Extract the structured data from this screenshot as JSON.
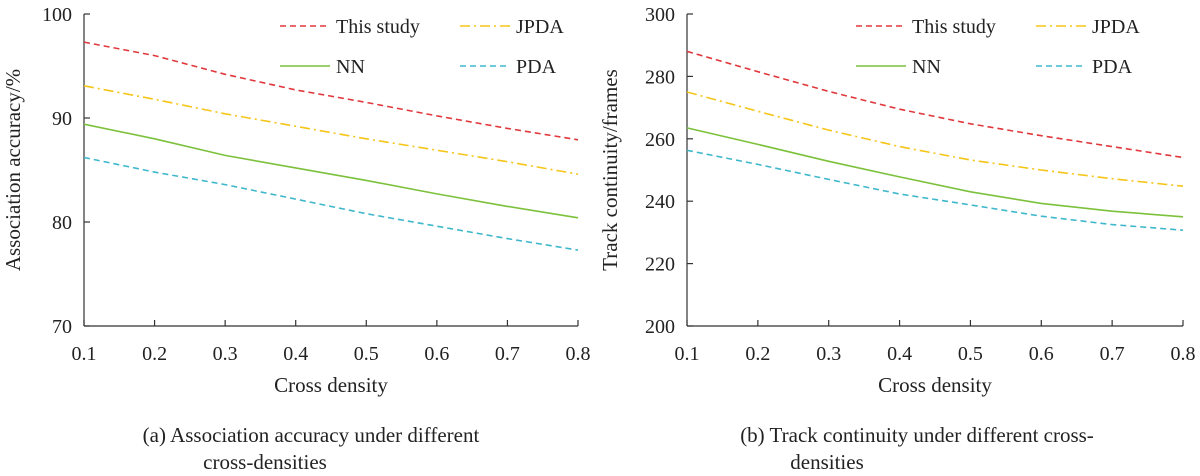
{
  "chart_data": [
    {
      "type": "line",
      "title": "",
      "xlabel": "Cross density",
      "ylabel": "Association accuracy/%",
      "caption_line1": "(a) Association accuracy under different",
      "caption_line2": "cross-densities",
      "x": [
        0.1,
        0.2,
        0.3,
        0.4,
        0.5,
        0.6,
        0.7,
        0.8
      ],
      "xticks": [
        "0.1",
        "0.2",
        "0.3",
        "0.4",
        "0.5",
        "0.6",
        "0.7",
        "0.8"
      ],
      "yticks": [
        "70",
        "80",
        "90",
        "100"
      ],
      "xlim": [
        0.1,
        0.8
      ],
      "ylim": [
        70,
        100
      ],
      "legend_position": "top-right",
      "series": [
        {
          "name": "This study",
          "color": "#e0383c",
          "dash": "dashed",
          "values": [
            97.3,
            96.0,
            94.2,
            92.7,
            91.5,
            90.2,
            89.0,
            87.9
          ]
        },
        {
          "name": "JPDA",
          "color": "#f5c518",
          "dash": "dashdot",
          "values": [
            93.1,
            91.8,
            90.4,
            89.2,
            88.0,
            86.9,
            85.8,
            84.6
          ]
        },
        {
          "name": "NN",
          "color": "#7cc13b",
          "dash": "solid",
          "values": [
            89.4,
            88.0,
            86.4,
            85.2,
            84.0,
            82.7,
            81.5,
            80.4
          ]
        },
        {
          "name": "PDA",
          "color": "#3fb8cc",
          "dash": "dashed",
          "values": [
            86.2,
            84.8,
            83.6,
            82.2,
            80.8,
            79.6,
            78.4,
            77.3
          ]
        }
      ]
    },
    {
      "type": "line",
      "title": "",
      "xlabel": "Cross density",
      "ylabel": "Track continuity/frames",
      "caption_line1": "(b) Track continuity under different cross-",
      "caption_line2": "densities",
      "x": [
        0.1,
        0.2,
        0.3,
        0.4,
        0.5,
        0.6,
        0.7,
        0.8
      ],
      "xticks": [
        "0.1",
        "0.2",
        "0.3",
        "0.4",
        "0.5",
        "0.6",
        "0.7",
        "0.8"
      ],
      "yticks": [
        "200",
        "220",
        "240",
        "260",
        "280",
        "300"
      ],
      "xlim": [
        0.1,
        0.8
      ],
      "ylim": [
        200,
        300
      ],
      "legend_position": "top-right",
      "series": [
        {
          "name": "This study",
          "color": "#e0383c",
          "dash": "dashed",
          "values": [
            288.0,
            281.5,
            275.2,
            269.5,
            264.8,
            261.0,
            257.5,
            254.0
          ]
        },
        {
          "name": "JPDA",
          "color": "#f5c518",
          "dash": "dashdot",
          "values": [
            275.0,
            268.8,
            262.8,
            257.5,
            253.2,
            250.0,
            247.2,
            244.8
          ]
        },
        {
          "name": "NN",
          "color": "#7cc13b",
          "dash": "solid",
          "values": [
            263.5,
            258.2,
            252.8,
            247.8,
            243.0,
            239.3,
            236.8,
            235.0
          ]
        },
        {
          "name": "PDA",
          "color": "#3fb8cc",
          "dash": "dashed",
          "values": [
            256.3,
            251.8,
            247.0,
            242.3,
            238.8,
            235.2,
            232.5,
            230.7
          ]
        }
      ]
    }
  ]
}
